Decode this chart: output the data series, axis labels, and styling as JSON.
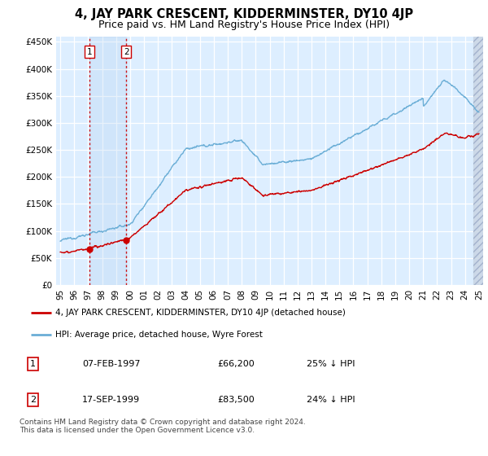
{
  "title": "4, JAY PARK CRESCENT, KIDDERMINSTER, DY10 4JP",
  "subtitle": "Price paid vs. HM Land Registry's House Price Index (HPI)",
  "ylabel_ticks": [
    "£0",
    "£50K",
    "£100K",
    "£150K",
    "£200K",
    "£250K",
    "£300K",
    "£350K",
    "£400K",
    "£450K"
  ],
  "ytick_values": [
    0,
    50000,
    100000,
    150000,
    200000,
    250000,
    300000,
    350000,
    400000,
    450000
  ],
  "ylim": [
    0,
    460000
  ],
  "xlim_start": 1994.7,
  "xlim_end": 2025.3,
  "sale1_x": 1997.1,
  "sale1_y": 66200,
  "sale2_x": 1999.72,
  "sale2_y": 83500,
  "hpi_color": "#6baed6",
  "price_color": "#cc0000",
  "background_plot": "#ddeeff",
  "grid_color": "#ffffff",
  "hatch_color": "#c0c8d8",
  "legend_label_price": "4, JAY PARK CRESCENT, KIDDERMINSTER, DY10 4JP (detached house)",
  "legend_label_hpi": "HPI: Average price, detached house, Wyre Forest",
  "table_row1": [
    "1",
    "07-FEB-1997",
    "£66,200",
    "25% ↓ HPI"
  ],
  "table_row2": [
    "2",
    "17-SEP-1999",
    "£83,500",
    "24% ↓ HPI"
  ],
  "footnote": "Contains HM Land Registry data © Crown copyright and database right 2024.\nThis data is licensed under the Open Government Licence v3.0.",
  "title_fontsize": 10.5,
  "subtitle_fontsize": 9,
  "xtick_labels": [
    "95",
    "96",
    "97",
    "98",
    "99",
    "00",
    "01",
    "02",
    "03",
    "04",
    "05",
    "06",
    "07",
    "08",
    "09",
    "10",
    "11",
    "12",
    "13",
    "14",
    "15",
    "16",
    "17",
    "18",
    "19",
    "20",
    "21",
    "22",
    "23",
    "24",
    "25"
  ],
  "xtick_years": [
    1995,
    1996,
    1997,
    1998,
    1999,
    2000,
    2001,
    2002,
    2003,
    2004,
    2005,
    2006,
    2007,
    2008,
    2009,
    2010,
    2011,
    2012,
    2013,
    2014,
    2015,
    2016,
    2017,
    2018,
    2019,
    2020,
    2021,
    2022,
    2023,
    2024,
    2025
  ]
}
